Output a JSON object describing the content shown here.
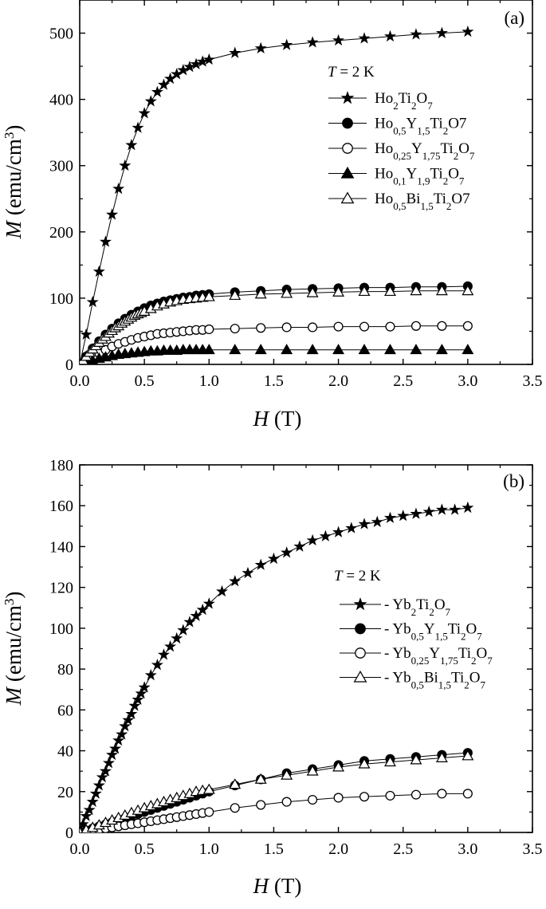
{
  "chart_data": [
    {
      "type": "scatter",
      "panel_label": "(a)",
      "xlabel_italic": "H",
      "xlabel_unit": "(T)",
      "ylabel_italic": "M",
      "ylabel_unit": "(emu/cm",
      "ylabel_unit_sup": "3",
      "ylabel_unit_close": ")",
      "xlim": [
        0,
        3.5
      ],
      "ylim": [
        0,
        550
      ],
      "xticks": [
        "0.0",
        "0.5",
        "1.0",
        "1.5",
        "2.0",
        "2.5",
        "3.0",
        "3.5"
      ],
      "yticks": [
        "0",
        "100",
        "200",
        "300",
        "400",
        "500"
      ],
      "ytick_values": [
        0,
        100,
        200,
        300,
        400,
        500
      ],
      "legend_header_italic": "T",
      "legend_header_rest": " = 2 K",
      "legend_position": "right-middle",
      "series": [
        {
          "name": "Ho2Ti2O7",
          "label_parts": [
            [
              "Ho",
              ""
            ],
            [
              "2",
              "sub"
            ],
            [
              "Ti",
              ""
            ],
            [
              "2",
              "sub"
            ],
            [
              "O",
              ""
            ],
            [
              "7",
              "sub"
            ]
          ],
          "marker": "star-filled",
          "x": [
            0,
            0.05,
            0.1,
            0.15,
            0.2,
            0.25,
            0.3,
            0.35,
            0.4,
            0.45,
            0.5,
            0.55,
            0.6,
            0.65,
            0.7,
            0.75,
            0.8,
            0.85,
            0.9,
            0.95,
            1.0,
            1.2,
            1.4,
            1.6,
            1.8,
            2.0,
            2.2,
            2.4,
            2.6,
            2.8,
            3.0
          ],
          "y": [
            0,
            45,
            94,
            140,
            185,
            226,
            265,
            300,
            331,
            357,
            379,
            397,
            411,
            422,
            431,
            438,
            444,
            449,
            453,
            457,
            460,
            470,
            477,
            482,
            486,
            489,
            492,
            495,
            498,
            500,
            502
          ]
        },
        {
          "name": "Ho0,5Y1,5Ti2O7",
          "label_parts": [
            [
              "Ho",
              ""
            ],
            [
              "0,5",
              "sub"
            ],
            [
              "Y",
              ""
            ],
            [
              "1,5",
              "sub"
            ],
            [
              "Ti",
              ""
            ],
            [
              "2",
              "sub"
            ],
            [
              "O7",
              ""
            ]
          ],
          "marker": "circle-filled",
          "x": [
            0,
            0.05,
            0.1,
            0.15,
            0.2,
            0.25,
            0.3,
            0.35,
            0.4,
            0.45,
            0.5,
            0.55,
            0.6,
            0.65,
            0.7,
            0.75,
            0.8,
            0.85,
            0.9,
            0.95,
            1.0,
            1.2,
            1.4,
            1.6,
            1.8,
            2.0,
            2.2,
            2.4,
            2.6,
            2.8,
            3.0
          ],
          "y": [
            0,
            12,
            24,
            35,
            45,
            54,
            62,
            69,
            75,
            80,
            85,
            89,
            92,
            95,
            97,
            99,
            101,
            102,
            104,
            105,
            106,
            109,
            111,
            113,
            114,
            115,
            116,
            116,
            117,
            117,
            118
          ]
        },
        {
          "name": "Ho0,25Y1,75Ti2O7",
          "label_parts": [
            [
              "Ho",
              ""
            ],
            [
              "0,25",
              "sub"
            ],
            [
              "Y",
              ""
            ],
            [
              "1,75",
              "sub"
            ],
            [
              "Ti",
              ""
            ],
            [
              "2",
              "sub"
            ],
            [
              "O",
              ""
            ],
            [
              "7",
              "sub"
            ]
          ],
          "marker": "circle-open",
          "x": [
            0,
            0.05,
            0.1,
            0.15,
            0.2,
            0.25,
            0.3,
            0.35,
            0.4,
            0.45,
            0.5,
            0.55,
            0.6,
            0.65,
            0.7,
            0.75,
            0.8,
            0.85,
            0.9,
            0.95,
            1.0,
            1.2,
            1.4,
            1.6,
            1.8,
            2.0,
            2.2,
            2.4,
            2.6,
            2.8,
            3.0
          ],
          "y": [
            0,
            6,
            12,
            17,
            22,
            27,
            31,
            34,
            37,
            40,
            42,
            44,
            46,
            47,
            48,
            49,
            50,
            51,
            52,
            52,
            53,
            54,
            55,
            56,
            56,
            57,
            57,
            57,
            58,
            58,
            58
          ]
        },
        {
          "name": "Ho0,1Y1,9Ti2O7",
          "label_parts": [
            [
              "Ho",
              ""
            ],
            [
              "0,1",
              "sub"
            ],
            [
              "Y",
              ""
            ],
            [
              "1,9",
              "sub"
            ],
            [
              "Ti",
              ""
            ],
            [
              "2",
              "sub"
            ],
            [
              "O",
              ""
            ],
            [
              "7",
              "sub"
            ]
          ],
          "marker": "triangle-filled",
          "x": [
            0,
            0.05,
            0.1,
            0.15,
            0.2,
            0.25,
            0.3,
            0.35,
            0.4,
            0.45,
            0.5,
            0.55,
            0.6,
            0.65,
            0.7,
            0.75,
            0.8,
            0.85,
            0.9,
            0.95,
            1.0,
            1.2,
            1.4,
            1.6,
            1.8,
            2.0,
            2.2,
            2.4,
            2.6,
            2.8,
            3.0
          ],
          "y": [
            0,
            3,
            6,
            9,
            11,
            13,
            15,
            16,
            17,
            18,
            19,
            20,
            20,
            21,
            21,
            21,
            22,
            22,
            22,
            22,
            22,
            22,
            22,
            22,
            22,
            22,
            22,
            22,
            22,
            22,
            22
          ]
        },
        {
          "name": "Ho0,5Bi1,5Ti2O7",
          "label_parts": [
            [
              "Ho",
              ""
            ],
            [
              "0,5",
              "sub"
            ],
            [
              "Bi",
              ""
            ],
            [
              "1,5",
              "sub"
            ],
            [
              "Ti",
              ""
            ],
            [
              "2",
              "sub"
            ],
            [
              "O7",
              ""
            ]
          ],
          "marker": "triangle-open",
          "x": [
            0,
            0.025,
            0.05,
            0.075,
            0.1,
            0.125,
            0.15,
            0.175,
            0.2,
            0.225,
            0.25,
            0.275,
            0.3,
            0.325,
            0.35,
            0.375,
            0.4,
            0.425,
            0.45,
            0.475,
            0.5,
            0.55,
            0.6,
            0.65,
            0.7,
            0.75,
            0.8,
            0.85,
            0.9,
            0.95,
            1.0,
            1.2,
            1.4,
            1.6,
            1.8,
            2.0,
            2.2,
            2.4,
            2.6,
            2.8,
            3.0
          ],
          "y": [
            0,
            6,
            12,
            18,
            23,
            28,
            33,
            38,
            42,
            47,
            51,
            55,
            58,
            62,
            65,
            68,
            71,
            74,
            76,
            78,
            80,
            84,
            88,
            91,
            94,
            96,
            98,
            99,
            100,
            101,
            102,
            104,
            106,
            107,
            108,
            109,
            110,
            110,
            111,
            111,
            111
          ]
        }
      ]
    },
    {
      "type": "scatter",
      "panel_label": "(b)",
      "xlabel_italic": "H",
      "xlabel_unit": "(T)",
      "ylabel_italic": "M",
      "ylabel_unit": "(emu/cm",
      "ylabel_unit_sup": "3",
      "ylabel_unit_close": ")",
      "xlim": [
        0,
        3.5
      ],
      "ylim": [
        0,
        180
      ],
      "xticks": [
        "0.0",
        "0.5",
        "1.0",
        "1.5",
        "2.0",
        "2.5",
        "3.0",
        "3.5"
      ],
      "yticks": [
        "0",
        "20",
        "40",
        "60",
        "80",
        "100",
        "120",
        "140",
        "160",
        "180"
      ],
      "ytick_values": [
        0,
        20,
        40,
        60,
        80,
        100,
        120,
        140,
        160,
        180
      ],
      "legend_header_italic": "T",
      "legend_header_rest": " = 2 K",
      "legend_position": "right-middle",
      "series": [
        {
          "name": "- Yb2Ti2O7",
          "label_parts": [
            [
              "- Yb",
              ""
            ],
            [
              "2",
              "sub"
            ],
            [
              "Ti",
              ""
            ],
            [
              "2",
              "sub"
            ],
            [
              "O",
              ""
            ],
            [
              "7",
              "sub"
            ]
          ],
          "marker": "star-filled",
          "x": [
            0,
            0.025,
            0.05,
            0.075,
            0.1,
            0.125,
            0.15,
            0.175,
            0.2,
            0.225,
            0.25,
            0.275,
            0.3,
            0.325,
            0.35,
            0.375,
            0.4,
            0.425,
            0.45,
            0.475,
            0.5,
            0.55,
            0.6,
            0.65,
            0.7,
            0.75,
            0.8,
            0.85,
            0.9,
            0.95,
            1.0,
            1.1,
            1.2,
            1.3,
            1.4,
            1.5,
            1.6,
            1.7,
            1.8,
            1.9,
            2.0,
            2.1,
            2.2,
            2.3,
            2.4,
            2.5,
            2.6,
            2.7,
            2.8,
            2.9,
            3.0
          ],
          "y": [
            0,
            4,
            8,
            11,
            15,
            19,
            23,
            27,
            30,
            34,
            38,
            41,
            45,
            48,
            52,
            55,
            58,
            62,
            65,
            68,
            71,
            77,
            82,
            87,
            91,
            95,
            99,
            103,
            106,
            109,
            112,
            118,
            123,
            127,
            131,
            134,
            137,
            140,
            143,
            145,
            147,
            149,
            151,
            152,
            154,
            155,
            156,
            157,
            158,
            158,
            159
          ]
        },
        {
          "name": "- Yb0,5Y1,5Ti2O7",
          "label_parts": [
            [
              "- Yb",
              ""
            ],
            [
              "0,5",
              "sub"
            ],
            [
              "Y",
              ""
            ],
            [
              "1,5",
              "sub"
            ],
            [
              "Ti",
              ""
            ],
            [
              "2",
              "sub"
            ],
            [
              "O",
              ""
            ],
            [
              "7",
              "sub"
            ]
          ],
          "marker": "circle-filled",
          "x": [
            0,
            0.05,
            0.1,
            0.15,
            0.2,
            0.25,
            0.3,
            0.35,
            0.4,
            0.45,
            0.5,
            0.55,
            0.6,
            0.65,
            0.7,
            0.75,
            0.8,
            0.85,
            0.9,
            0.95,
            1.0,
            1.2,
            1.4,
            1.6,
            1.8,
            2.0,
            2.2,
            2.4,
            2.6,
            2.8,
            3.0
          ],
          "y": [
            0,
            1,
            2,
            3,
            4,
            5,
            6,
            7,
            8,
            9,
            10,
            11,
            12,
            13,
            14,
            15,
            16,
            17,
            18,
            19,
            20,
            23,
            26,
            29,
            31,
            33,
            35,
            36,
            37,
            38,
            39
          ]
        },
        {
          "name": "- Yb0,25Y1,75Ti2O7",
          "label_parts": [
            [
              "- Yb",
              ""
            ],
            [
              "0,25",
              "sub"
            ],
            [
              "Y",
              ""
            ],
            [
              "1,75",
              "sub"
            ],
            [
              "Ti",
              ""
            ],
            [
              "2",
              "sub"
            ],
            [
              "O",
              ""
            ],
            [
              "7",
              "sub"
            ]
          ],
          "marker": "circle-open",
          "x": [
            0,
            0.05,
            0.1,
            0.15,
            0.2,
            0.25,
            0.3,
            0.35,
            0.4,
            0.45,
            0.5,
            0.55,
            0.6,
            0.65,
            0.7,
            0.75,
            0.8,
            0.85,
            0.9,
            0.95,
            1.0,
            1.2,
            1.4,
            1.6,
            1.8,
            2.0,
            2.2,
            2.4,
            2.6,
            2.8,
            3.0
          ],
          "y": [
            0,
            0.5,
            1,
            1.5,
            2,
            2.5,
            3,
            3.5,
            4,
            4.5,
            5,
            5.5,
            6,
            6.5,
            7,
            7.5,
            8,
            8.5,
            9,
            9.5,
            10,
            12,
            13.5,
            15,
            16,
            17,
            17.5,
            18,
            18.5,
            19,
            19
          ]
        },
        {
          "name": "- Yb0,5Bi1,5Ti2O7",
          "label_parts": [
            [
              "- Yb",
              ""
            ],
            [
              "0,5",
              "sub"
            ],
            [
              "Bi",
              ""
            ],
            [
              "1,5",
              "sub"
            ],
            [
              "Ti",
              ""
            ],
            [
              "2",
              "sub"
            ],
            [
              "O",
              ""
            ],
            [
              "7",
              "sub"
            ]
          ],
          "marker": "triangle-open",
          "x": [
            0,
            0.05,
            0.1,
            0.15,
            0.2,
            0.25,
            0.3,
            0.35,
            0.4,
            0.45,
            0.5,
            0.55,
            0.6,
            0.65,
            0.7,
            0.75,
            0.8,
            0.85,
            0.9,
            0.95,
            1.0,
            1.2,
            1.4,
            1.6,
            1.8,
            2.0,
            2.2,
            2.4,
            2.6,
            2.8,
            3.0
          ],
          "y": [
            0,
            1.2,
            2.4,
            3.6,
            4.8,
            6,
            7.2,
            8.4,
            9.6,
            10.8,
            12,
            13,
            14,
            15,
            16,
            17,
            18,
            19,
            20,
            20.5,
            21,
            23.5,
            26,
            28,
            30,
            32,
            33.5,
            34.5,
            35.5,
            36.5,
            37.5
          ]
        }
      ]
    }
  ]
}
